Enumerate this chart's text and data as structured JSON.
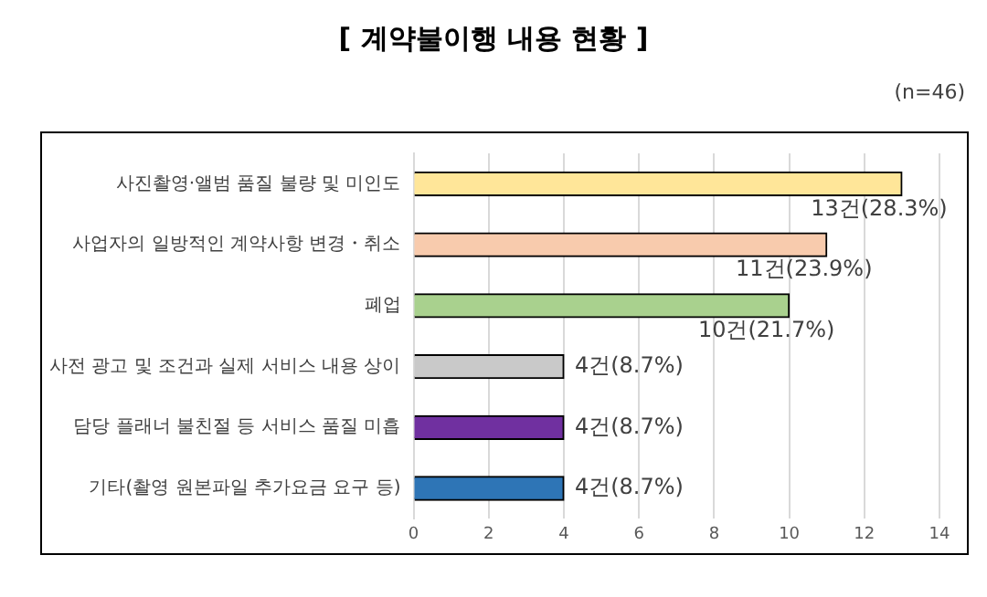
{
  "chart_data": {
    "type": "bar",
    "orientation": "horizontal",
    "title": "[ 계약불이행 내용 현황 ]",
    "annotations": [
      "(n=46)"
    ],
    "categories": [
      "사진촬영·앨범 품질 불량 및 미인도",
      "사업자의 일방적인 계약사항 변경・취소",
      "폐업",
      "사전 광고 및 조건과 실제 서비스 내용 상이",
      "담당 플래너 불친절 등 서비스 품질 미흡",
      "기타(촬영 원본파일 추가요금 요구 등)"
    ],
    "values": [
      13,
      11,
      10,
      4,
      4,
      4
    ],
    "colors": [
      "#ffe699",
      "#f8cbad",
      "#a9d18e",
      "#c9c9c9",
      "#7030a0",
      "#2e75b6"
    ],
    "value_labels": [
      "13건(28.3%)",
      "11건(23.9%)",
      "10건(21.7%)",
      "4건(8.7%)",
      "4건(8.7%)",
      "4건(8.7%)"
    ],
    "xlim": [
      0,
      14
    ],
    "xticks": [
      0,
      2,
      4,
      6,
      8,
      10,
      12,
      14
    ],
    "grid": "x",
    "legend": false
  }
}
